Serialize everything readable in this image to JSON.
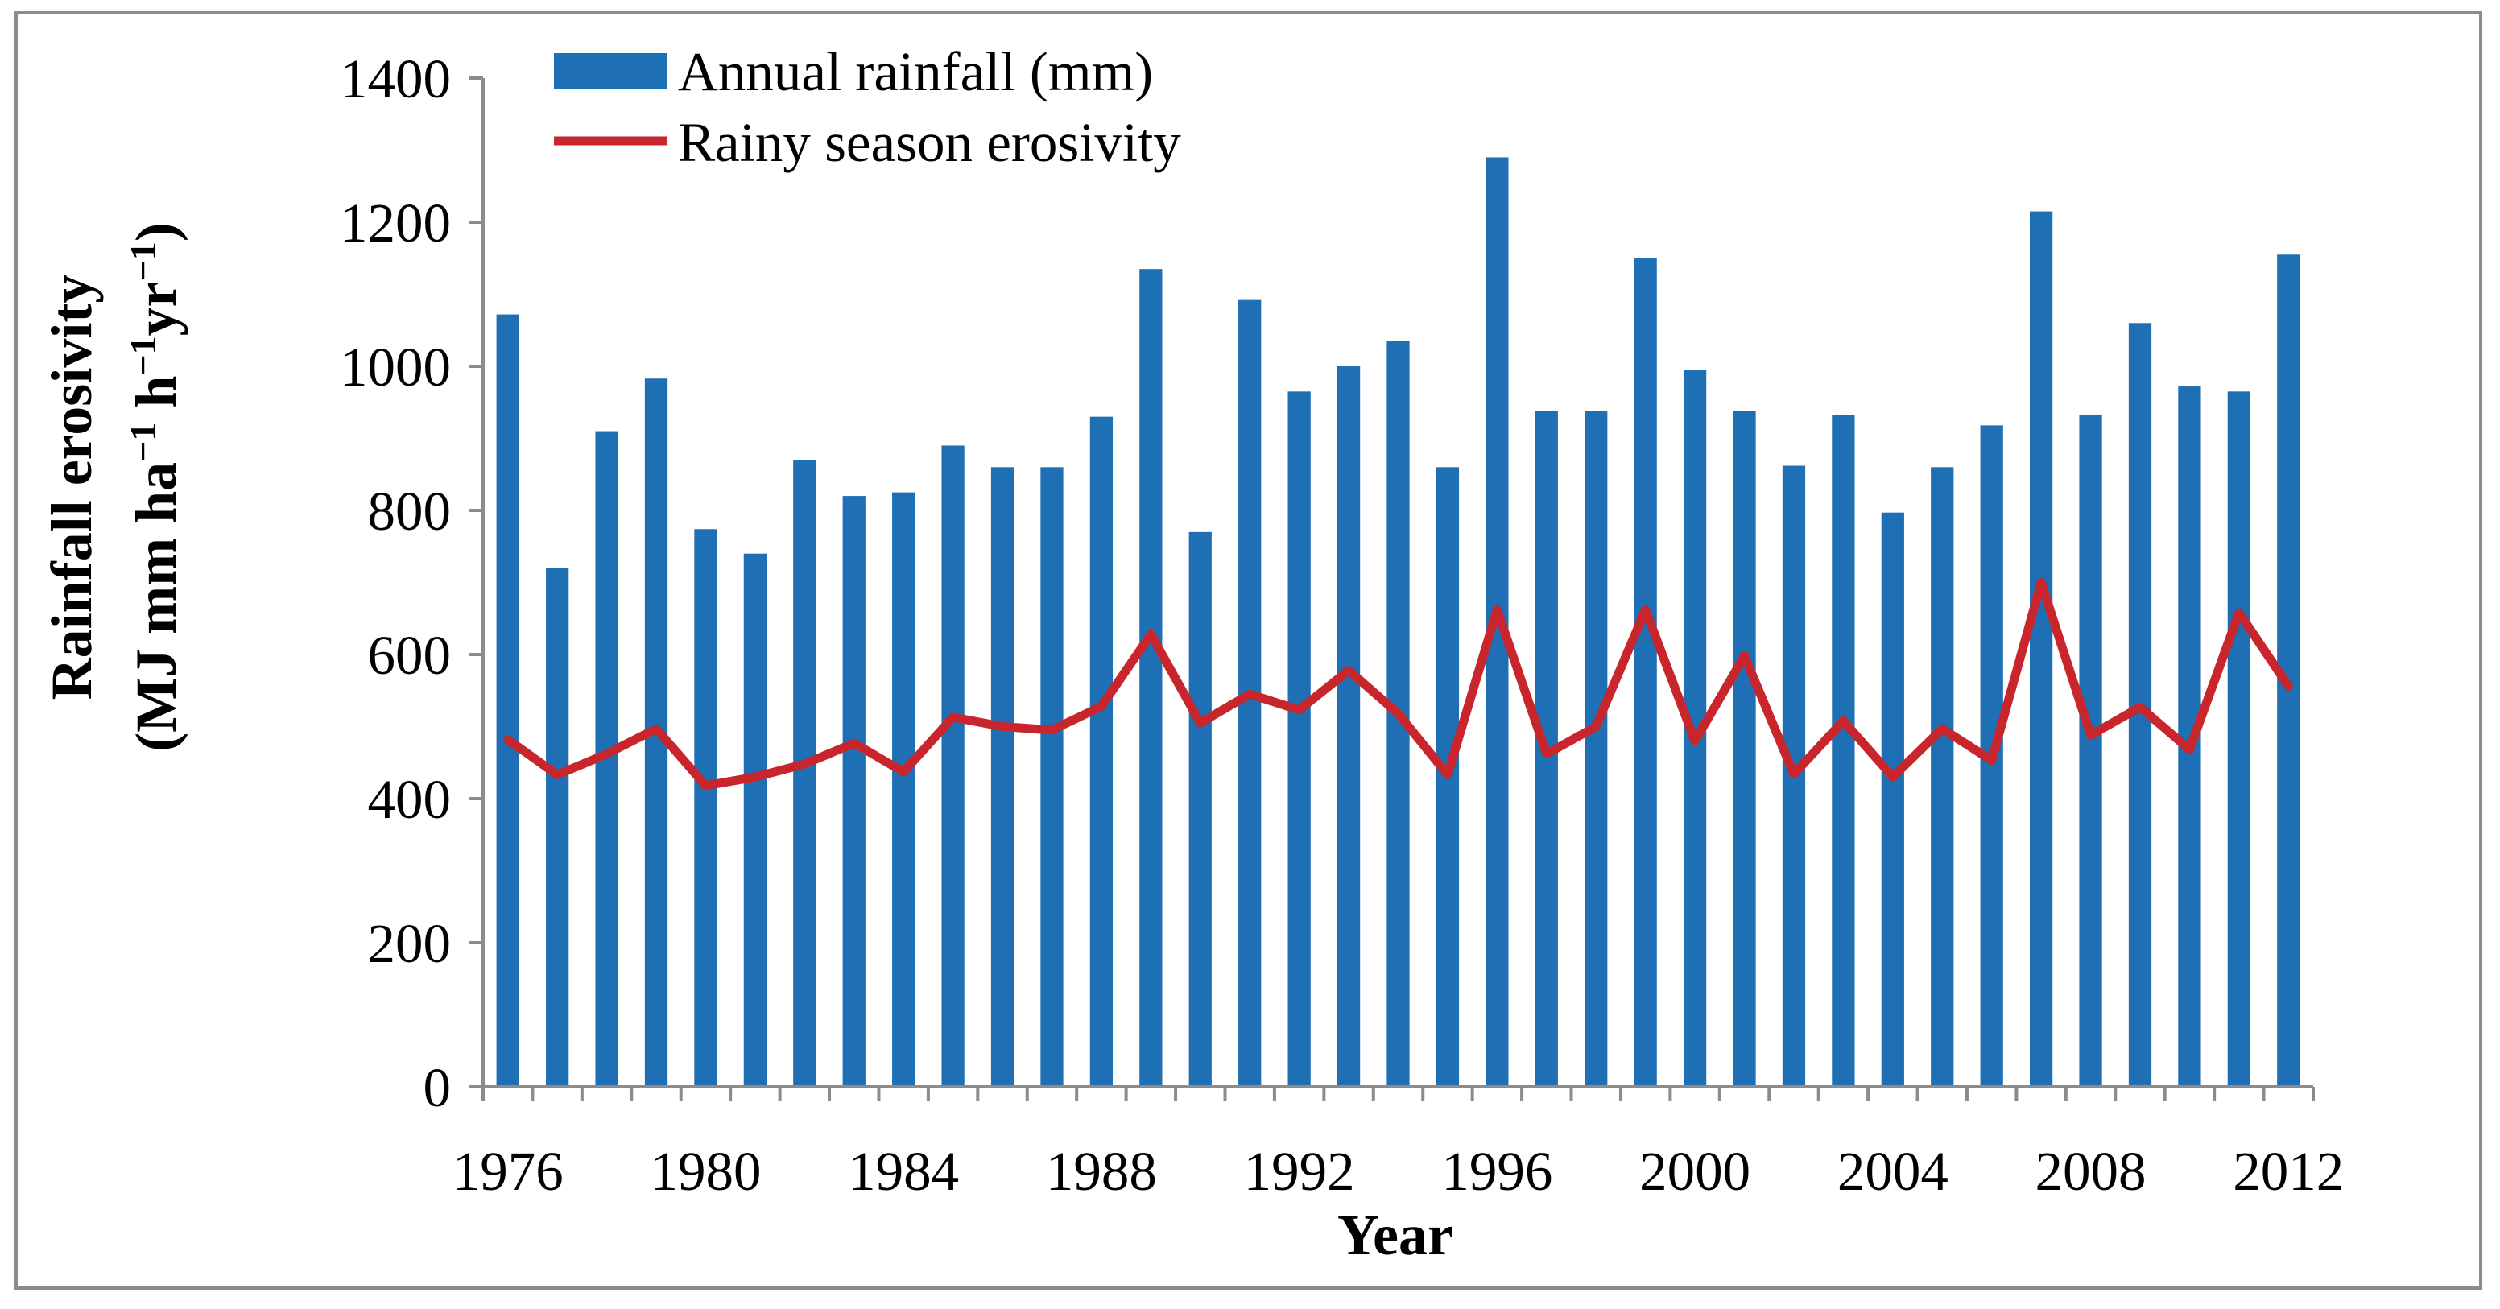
{
  "chart_data": {
    "type": "bar",
    "title": "",
    "xlabel": "Year",
    "ylabel_line1": "Rainfall erosivity",
    "ylabel_line2_parts": [
      "(MJ mm ha",
      "−1",
      " h",
      "−1",
      "yr",
      "−1",
      ")"
    ],
    "ylim": [
      0,
      1400
    ],
    "yticks": [
      0,
      200,
      400,
      600,
      800,
      1000,
      1200,
      1400
    ],
    "ytick_labels": [
      "0",
      "200",
      "400",
      "600",
      "800",
      "1000",
      "1200",
      "1400"
    ],
    "xtick_years": [
      1976,
      1980,
      1984,
      1988,
      1992,
      1996,
      2000,
      2004,
      2008,
      2012
    ],
    "xtick_labels": [
      "1976",
      "1980",
      "1984",
      "1988",
      "1992",
      "1996",
      "2000",
      "2004",
      "2008",
      "2012"
    ],
    "categories": [
      1976,
      1977,
      1978,
      1979,
      1980,
      1981,
      1982,
      1983,
      1984,
      1985,
      1986,
      1987,
      1988,
      1989,
      1990,
      1991,
      1992,
      1993,
      1994,
      1995,
      1996,
      1997,
      1998,
      1999,
      2000,
      2001,
      2002,
      2003,
      2004,
      2005,
      2006,
      2007,
      2008,
      2009,
      2010,
      2011,
      2012
    ],
    "legend_position": "top-left",
    "series": [
      {
        "name": "Annual rainfall (mm)",
        "kind": "bar",
        "color": "#1f6fb5",
        "values": [
          1072,
          720,
          910,
          983,
          774,
          740,
          870,
          820,
          825,
          890,
          860,
          860,
          930,
          1135,
          770,
          1092,
          965,
          1000,
          1035,
          860,
          1290,
          938,
          938,
          1150,
          995,
          938,
          862,
          932,
          797,
          860,
          918,
          1215,
          933,
          1060,
          972,
          965,
          1155
        ]
      },
      {
        "name": "Rainy season erosivity",
        "kind": "line",
        "color": "#c8262c",
        "values": [
          482,
          433,
          462,
          497,
          418,
          430,
          448,
          477,
          437,
          513,
          500,
          495,
          528,
          628,
          505,
          545,
          523,
          578,
          518,
          433,
          662,
          462,
          500,
          662,
          480,
          598,
          434,
          508,
          430,
          497,
          453,
          700,
          488,
          527,
          468,
          658,
          556
        ]
      }
    ]
  }
}
